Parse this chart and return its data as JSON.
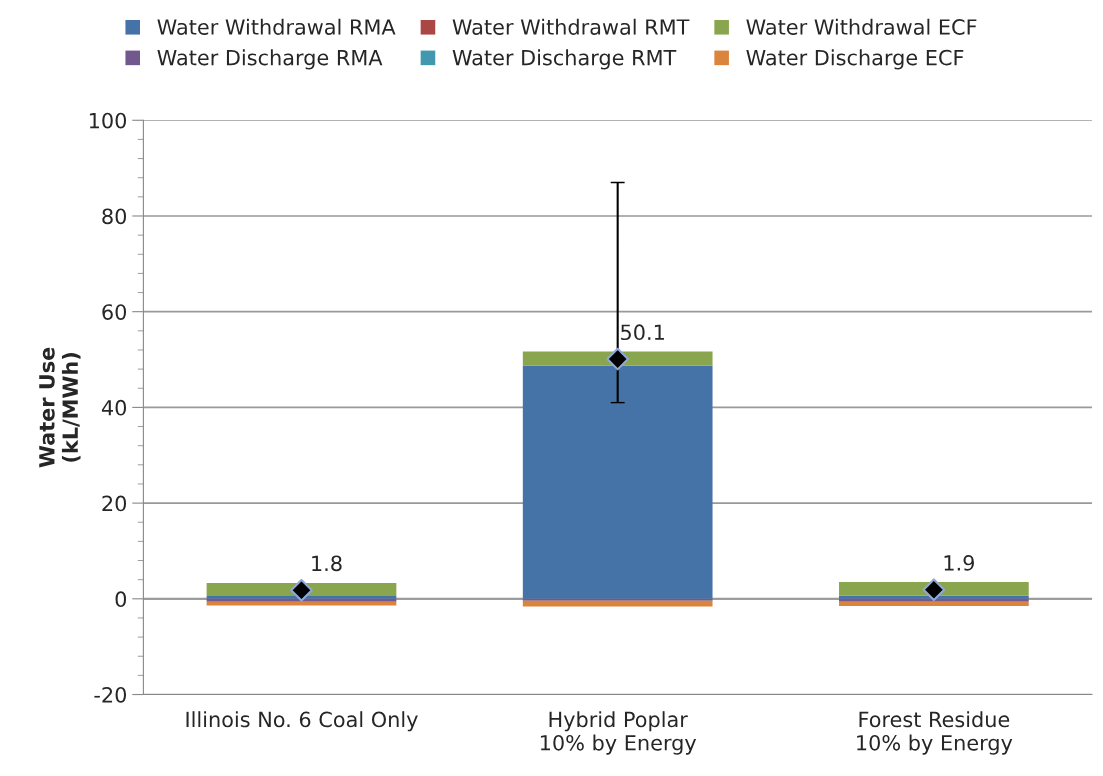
{
  "chart_data": {
    "type": "bar",
    "stacked": true,
    "ylabel": "Water Use\n(kL/MWh)",
    "categories": [
      "Illinois No. 6 Coal Only",
      "Hybrid Poplar\n10% by Energy",
      "Forest Residue\n10% by Energy"
    ],
    "series": [
      {
        "name": "Water Withdrawal RMA",
        "color": "#4572a7",
        "values": [
          0.6,
          48.7,
          0.7
        ]
      },
      {
        "name": "Water Withdrawal RMT",
        "color": "#aa4643",
        "values": [
          0.0,
          0.0,
          0.0
        ]
      },
      {
        "name": "Water Withdrawal ECF",
        "color": "#89a54e",
        "values": [
          2.7,
          3.0,
          2.8
        ]
      },
      {
        "name": "Water Discharge RMA",
        "color": "#71588f",
        "values": [
          -0.6,
          -0.4,
          -0.6
        ]
      },
      {
        "name": "Water Discharge RMT",
        "color": "#4198af",
        "values": [
          null,
          0.0,
          null
        ]
      },
      {
        "name": "Water Discharge ECF",
        "color": "#db843d",
        "values": [
          -0.8,
          -1.2,
          -0.9
        ]
      },
      {
        "type": "scatter",
        "color": "#000000",
        "marker": "diamond",
        "x": [
          "Illinois No. 6 Coal Only",
          "Hybrid Poplar\n10% by Energy",
          "Forest Residue\n10% by Energy"
        ],
        "values": [
          1.8,
          50.1,
          1.9
        ],
        "errors": [
          null,
          [
            41.0,
            87.0
          ],
          null
        ],
        "value_labels": [
          "1.8",
          "50.1",
          "1.9"
        ]
      }
    ],
    "ylim": [
      -20,
      100
    ],
    "yticks": [
      -20,
      0,
      20,
      40,
      60,
      80,
      100
    ],
    "grid": "y",
    "legend": "top"
  }
}
